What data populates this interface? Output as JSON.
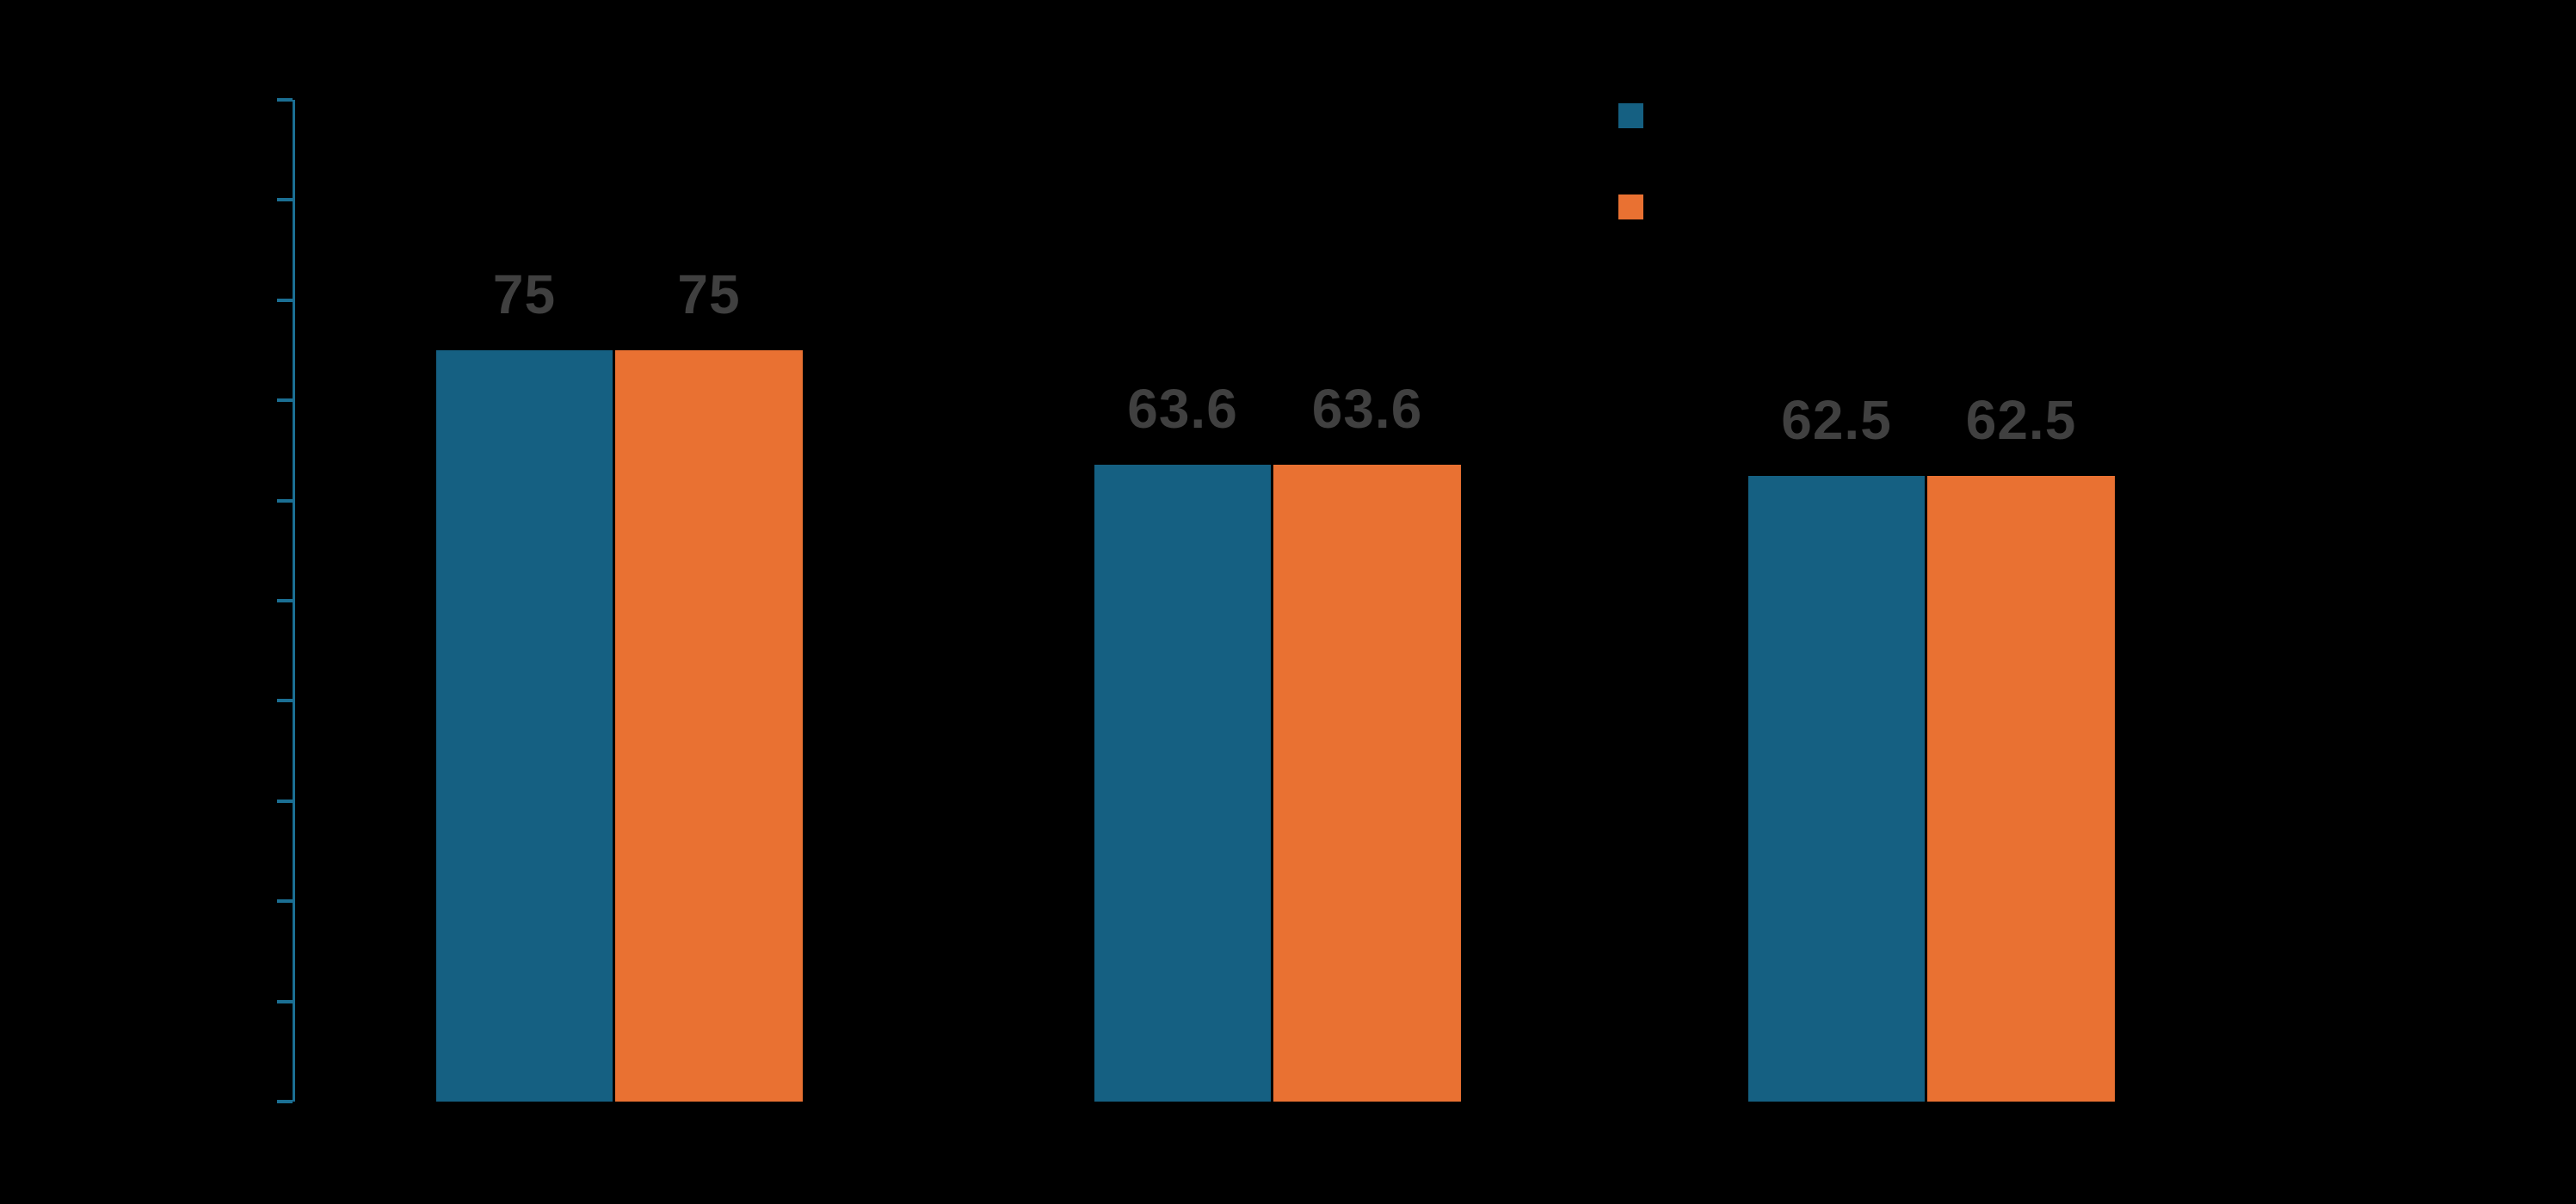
{
  "page": {
    "background": "#000000"
  },
  "chart_data": {
    "type": "bar",
    "title": "",
    "categories": [
      "",
      "",
      ""
    ],
    "series": [
      {
        "name": "",
        "color": "#156082",
        "values": [
          75,
          63.6,
          62.5
        ],
        "labels": [
          "75",
          "63.6",
          "62.5"
        ]
      },
      {
        "name": "",
        "color": "#E97132",
        "values": [
          75,
          63.6,
          62.5
        ],
        "labels": [
          "75",
          "63.6",
          "62.5"
        ]
      }
    ],
    "xlabel": "",
    "ylabel": "",
    "ylim": [
      0,
      100
    ],
    "y_tick_step": 10,
    "y_tick_labels_visible": false,
    "x_tick_labels_visible": false,
    "grid": false,
    "legend_position": "top-right",
    "legend_orientation": "vertical",
    "data_label_color": "#404040",
    "axis_color": "#1B6F93",
    "background": "#000000"
  }
}
